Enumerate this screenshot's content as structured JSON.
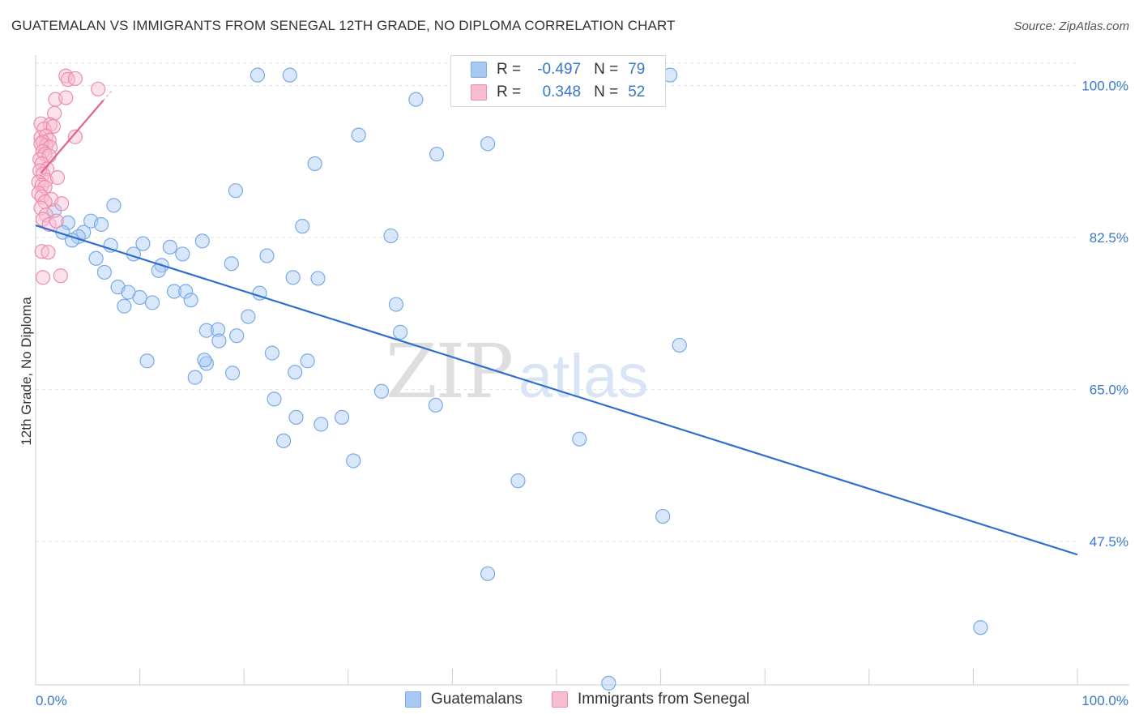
{
  "title": "GUATEMALAN VS IMMIGRANTS FROM SENEGAL 12TH GRADE, NO DIPLOMA CORRELATION CHART",
  "source": "Source: ZipAtlas.com",
  "watermark": {
    "zip": "ZIP",
    "atlas": "atlas"
  },
  "legend": {
    "series": [
      {
        "r_label": "R =",
        "r_value": "-0.497",
        "n_label": "N =",
        "n_value": "79",
        "color": "#a9c9f3",
        "stroke": "#7aaae6",
        "value_color": "#3a78c8"
      },
      {
        "r_label": "R =",
        "r_value": "0.348",
        "n_label": "N =",
        "n_value": "52",
        "color": "#f7bcd0",
        "stroke": "#ee8cb0",
        "value_color": "#3a78c8"
      }
    ]
  },
  "bottom_legend": [
    "Guatemalans",
    "Immigrants from Senegal"
  ],
  "chart_data": {
    "type": "scatter",
    "title": "GUATEMALAN VS IMMIGRANTS FROM SENEGAL 12TH GRADE, NO DIPLOMA CORRELATION CHART",
    "xlabel": "",
    "ylabel": "12th Grade, No Diploma",
    "xlim": [
      0,
      100
    ],
    "ylim": [
      31,
      103.5
    ],
    "x_tick_labels": [
      "0.0%",
      "100.0%"
    ],
    "y_ticks": [
      47.5,
      65.0,
      82.5,
      100.0
    ],
    "y_tick_labels": [
      "47.5%",
      "65.0%",
      "82.5%",
      "100.0%"
    ],
    "grid": true,
    "legend_position": "top-center",
    "series": [
      {
        "name": "Guatemalans",
        "color": "#a9c9f3",
        "stroke": "#7aaae6",
        "line_color": "#2f6fce",
        "trend": {
          "x": [
            0,
            100
          ],
          "y": [
            83.9,
            46.0
          ]
        },
        "points": [
          [
            21.3,
            101.2
          ],
          [
            24.4,
            101.2
          ],
          [
            60.9,
            101.2
          ],
          [
            36.5,
            98.4
          ],
          [
            31.0,
            94.3
          ],
          [
            43.4,
            93.3
          ],
          [
            38.5,
            92.1
          ],
          [
            26.8,
            91.0
          ],
          [
            19.2,
            87.9
          ],
          [
            7.5,
            86.2
          ],
          [
            1.8,
            85.6
          ],
          [
            3.1,
            84.2
          ],
          [
            5.3,
            84.4
          ],
          [
            6.3,
            84.0
          ],
          [
            25.6,
            83.8
          ],
          [
            2.6,
            83.1
          ],
          [
            4.6,
            83.1
          ],
          [
            4.1,
            82.6
          ],
          [
            3.5,
            82.2
          ],
          [
            16.0,
            82.1
          ],
          [
            10.3,
            81.8
          ],
          [
            7.2,
            81.6
          ],
          [
            12.9,
            81.4
          ],
          [
            34.1,
            82.7
          ],
          [
            9.4,
            80.6
          ],
          [
            14.1,
            80.6
          ],
          [
            22.2,
            80.4
          ],
          [
            5.8,
            80.1
          ],
          [
            18.8,
            79.5
          ],
          [
            12.1,
            79.3
          ],
          [
            11.8,
            78.7
          ],
          [
            6.6,
            78.5
          ],
          [
            24.7,
            77.9
          ],
          [
            27.1,
            77.8
          ],
          [
            7.9,
            76.8
          ],
          [
            8.9,
            76.2
          ],
          [
            13.3,
            76.3
          ],
          [
            14.4,
            76.3
          ],
          [
            21.5,
            76.1
          ],
          [
            10.0,
            75.6
          ],
          [
            14.9,
            75.3
          ],
          [
            11.2,
            75.0
          ],
          [
            8.5,
            74.6
          ],
          [
            34.6,
            74.8
          ],
          [
            20.4,
            73.4
          ],
          [
            16.4,
            71.8
          ],
          [
            17.5,
            71.9
          ],
          [
            19.3,
            71.2
          ],
          [
            35.0,
            71.6
          ],
          [
            17.6,
            70.6
          ],
          [
            61.8,
            70.1
          ],
          [
            22.7,
            69.2
          ],
          [
            10.7,
            68.3
          ],
          [
            16.4,
            68.0
          ],
          [
            16.2,
            68.4
          ],
          [
            26.1,
            68.3
          ],
          [
            18.9,
            66.9
          ],
          [
            24.9,
            67.0
          ],
          [
            15.3,
            66.4
          ],
          [
            33.2,
            64.8
          ],
          [
            22.9,
            63.9
          ],
          [
            38.4,
            63.2
          ],
          [
            25.0,
            61.8
          ],
          [
            29.4,
            61.8
          ],
          [
            27.4,
            61.0
          ],
          [
            23.8,
            59.1
          ],
          [
            52.2,
            59.3
          ],
          [
            30.5,
            56.8
          ],
          [
            46.3,
            54.5
          ],
          [
            60.2,
            50.4
          ],
          [
            43.4,
            43.8
          ],
          [
            90.7,
            37.6
          ],
          [
            55.0,
            31.2
          ]
        ]
      },
      {
        "name": "Immigrants from Senegal",
        "color": "#f7bcd0",
        "stroke": "#ee8cb0",
        "line_color": "#e2618f",
        "trend": {
          "x": [
            0.5,
            6.5
          ],
          "y": [
            89.9,
            98.3
          ]
        },
        "dashed_extension": {
          "x": [
            6.5,
            7.3
          ],
          "y": [
            98.3,
            99.4
          ]
        },
        "points": [
          [
            2.9,
            101.1
          ],
          [
            3.1,
            100.7
          ],
          [
            3.8,
            100.8
          ],
          [
            6.0,
            99.6
          ],
          [
            1.9,
            98.4
          ],
          [
            2.9,
            98.6
          ],
          [
            1.8,
            96.8
          ],
          [
            0.5,
            95.6
          ],
          [
            1.4,
            95.5
          ],
          [
            0.8,
            95.0
          ],
          [
            1.7,
            95.3
          ],
          [
            3.8,
            94.1
          ],
          [
            0.5,
            94.0
          ],
          [
            1.0,
            94.2
          ],
          [
            1.3,
            93.7
          ],
          [
            0.7,
            93.5
          ],
          [
            1.0,
            93.1
          ],
          [
            0.5,
            93.3
          ],
          [
            1.4,
            92.9
          ],
          [
            0.7,
            92.4
          ],
          [
            0.9,
            92.1
          ],
          [
            0.4,
            91.5
          ],
          [
            1.3,
            91.9
          ],
          [
            0.6,
            91.0
          ],
          [
            1.1,
            90.4
          ],
          [
            0.4,
            90.2
          ],
          [
            0.7,
            89.8
          ],
          [
            1.0,
            89.1
          ],
          [
            2.1,
            89.4
          ],
          [
            0.3,
            88.9
          ],
          [
            0.6,
            88.5
          ],
          [
            0.9,
            88.3
          ],
          [
            0.3,
            87.6
          ],
          [
            0.6,
            87.2
          ],
          [
            1.5,
            86.9
          ],
          [
            0.9,
            86.6
          ],
          [
            2.5,
            86.4
          ],
          [
            0.5,
            85.9
          ],
          [
            1.0,
            85.1
          ],
          [
            0.7,
            84.6
          ],
          [
            1.3,
            84.0
          ],
          [
            2.0,
            84.4
          ],
          [
            0.6,
            80.9
          ],
          [
            1.2,
            80.8
          ],
          [
            0.7,
            77.9
          ],
          [
            2.4,
            78.1
          ]
        ]
      }
    ]
  }
}
